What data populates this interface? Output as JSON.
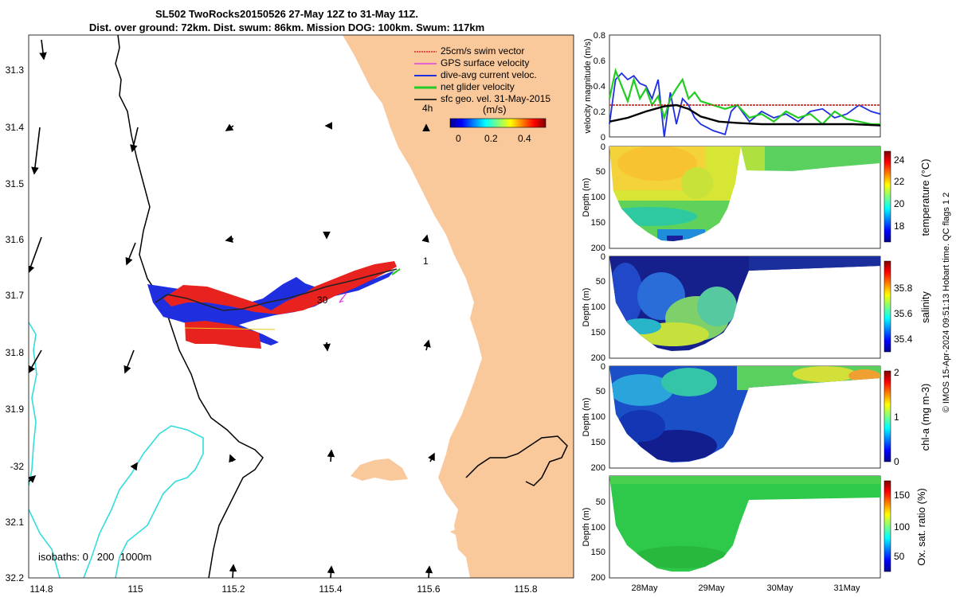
{
  "header": {
    "title_line1": "SL502 TwoRocks20150526 27-May 12Z to 31-May 11Z.",
    "title_line2": "Dist. over ground: 72km. Dist. swum: 86km. Mission DOG: 100km. Swum: 117km"
  },
  "map": {
    "lon_ticks": [
      "114.8",
      "115",
      "115.2",
      "115.4",
      "115.6",
      "115.8"
    ],
    "lat_ticks": [
      "31.3",
      "31.4",
      "31.5",
      "31.6",
      "31.7",
      "31.8",
      "31.9",
      "-32",
      "32.1",
      "32.2"
    ],
    "legend": [
      {
        "label": "25cm/s swim vector",
        "color": "#e8231f"
      },
      {
        "label": "GPS surface velocity",
        "color": "#e040e0"
      },
      {
        "label": "dive-avg current veloc.",
        "color": "#1f2fe0"
      },
      {
        "label": "net glider velocity",
        "color": "#22cc22"
      },
      {
        "label": "sfc geo. vel. 31-May-2015",
        "color": "#000000"
      }
    ],
    "time_label": "4h",
    "colorbar_unit": "(m/s)",
    "colorbar_ticks": [
      "0",
      "0.2",
      "0.4"
    ],
    "track_labels": [
      "1",
      "30"
    ],
    "isobaths_label": "isobaths: 0   200  1000m",
    "land_color": "#f9c89b",
    "isobath_colors": {
      "coast": "#000000",
      "deep": "#33dddd"
    }
  },
  "chart_data": [
    {
      "type": "line",
      "ylabel": "velocity magnitude (m/s)",
      "ylim": [
        0,
        0.8
      ],
      "yticks": [
        "0",
        "0.2",
        "0.4",
        "0.6",
        "0.8"
      ],
      "series": [
        {
          "name": "dive-avg current veloc.",
          "color": "#1f2fe0",
          "x": [
            27.5,
            27.6,
            27.7,
            27.8,
            27.9,
            28.0,
            28.1,
            28.2,
            28.3,
            28.4,
            28.5,
            28.6,
            28.7,
            28.8,
            28.9,
            29.0,
            29.2,
            29.4,
            29.5,
            29.6,
            29.8,
            30.0,
            30.2,
            30.4,
            30.6,
            30.8,
            31.0,
            31.2,
            31.4,
            31.6,
            31.8,
            31.95
          ],
          "values": [
            0.1,
            0.45,
            0.5,
            0.45,
            0.48,
            0.42,
            0.4,
            0.3,
            0.45,
            0.0,
            0.35,
            0.1,
            0.3,
            0.25,
            0.15,
            0.1,
            0.05,
            0.02,
            0.2,
            0.25,
            0.12,
            0.2,
            0.15,
            0.18,
            0.12,
            0.2,
            0.22,
            0.15,
            0.18,
            0.25,
            0.2,
            0.18
          ]
        },
        {
          "name": "net glider velocity",
          "color": "#22cc22",
          "x": [
            27.5,
            27.6,
            27.7,
            27.8,
            27.9,
            28.0,
            28.1,
            28.2,
            28.3,
            28.4,
            28.5,
            28.6,
            28.7,
            28.8,
            28.9,
            29.0,
            29.2,
            29.4,
            29.6,
            29.8,
            30.0,
            30.2,
            30.4,
            30.6,
            30.8,
            31.0,
            31.2,
            31.4,
            31.6,
            31.8,
            31.95
          ],
          "values": [
            0.3,
            0.52,
            0.4,
            0.28,
            0.45,
            0.3,
            0.38,
            0.25,
            0.32,
            0.15,
            0.3,
            0.38,
            0.45,
            0.3,
            0.35,
            0.28,
            0.25,
            0.22,
            0.25,
            0.15,
            0.18,
            0.12,
            0.2,
            0.15,
            0.18,
            0.1,
            0.2,
            0.14,
            0.12,
            0.1,
            0.1
          ]
        },
        {
          "name": "25cm/s swim vector",
          "color": "#e8231f",
          "x": [
            27.5,
            31.95
          ],
          "values": [
            0.25,
            0.25
          ]
        },
        {
          "name": "sfc geo. vel.",
          "color": "#000000",
          "x": [
            27.5,
            27.8,
            28.1,
            28.4,
            28.6,
            28.8,
            29.0,
            29.3,
            29.6,
            30.0,
            30.5,
            31.0,
            31.5,
            31.95
          ],
          "values": [
            0.12,
            0.15,
            0.2,
            0.24,
            0.25,
            0.22,
            0.16,
            0.12,
            0.11,
            0.1,
            0.1,
            0.1,
            0.1,
            0.09
          ]
        }
      ]
    },
    {
      "type": "heatmap",
      "ylabel": "Depth (m)",
      "colorbar_label": "temperature (°C)",
      "yticks": [
        "0",
        "50",
        "100",
        "150",
        "200"
      ],
      "colorbar_ticks": [
        "18",
        "20",
        "22",
        "24"
      ],
      "colorbar_range": [
        16.5,
        25
      ]
    },
    {
      "type": "heatmap",
      "ylabel": "Depth (m)",
      "colorbar_label": "salinity",
      "yticks": [
        "0",
        "50",
        "100",
        "150",
        "200"
      ],
      "colorbar_ticks": [
        "35.4",
        "35.6",
        "35.8"
      ],
      "colorbar_range": [
        35.3,
        35.95
      ]
    },
    {
      "type": "heatmap",
      "ylabel": "Depth (m)",
      "colorbar_label": "chl-a (mg m-3)",
      "yticks": [
        "0",
        "50",
        "100",
        "150",
        "200"
      ],
      "colorbar_ticks": [
        "0",
        "1",
        "2"
      ],
      "colorbar_range": [
        0,
        2
      ]
    },
    {
      "type": "heatmap",
      "ylabel": "Depth (m)",
      "colorbar_label": "Ox. sat. ratio (%)",
      "yticks": [
        "50",
        "100",
        "150",
        "200"
      ],
      "colorbar_ticks": [
        "50",
        "100",
        "150"
      ],
      "colorbar_range": [
        20,
        175
      ],
      "x_ticks": [
        "28May",
        "29May",
        "30May",
        "31May"
      ]
    }
  ],
  "footer": {
    "credit": "© IMOS 15-Apr-2024 09:51:13 Hobart time. QC flags 1  2"
  }
}
